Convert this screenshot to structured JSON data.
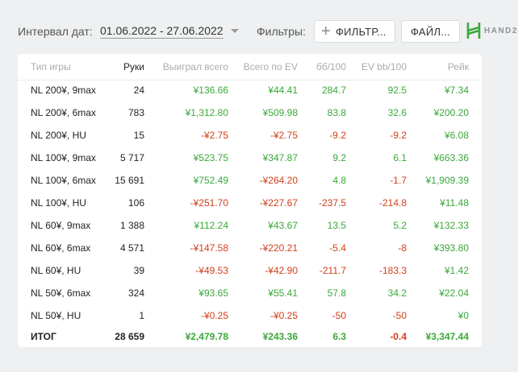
{
  "toolbar": {
    "date_label": "Интервал дат:",
    "date_range": "01.06.2022 - 27.06.2022",
    "filters_label": "Фильтры:",
    "filter_button": "ФИЛЬТР...",
    "file_button": "ФАЙЛ...",
    "logo_text": "HAND2",
    "logo_color": "#3aa83a"
  },
  "table": {
    "headers": [
      "Тип игры",
      "Руки",
      "Выиграл всего",
      "Всего по EV",
      "бб/100",
      "EV bb/100",
      "Рейк"
    ],
    "rows": [
      [
        "NL 200¥, 9max",
        "24",
        "¥136.66",
        "¥44.41",
        "284.7",
        "92.5",
        "¥7.34"
      ],
      [
        "NL 200¥, 6max",
        "783",
        "¥1,312.80",
        "¥509.98",
        "83.8",
        "32.6",
        "¥200.20"
      ],
      [
        "NL 200¥, HU",
        "15",
        "-¥2.75",
        "-¥2.75",
        "-9.2",
        "-9.2",
        "¥6.08"
      ],
      [
        "NL 100¥, 9max",
        "5 717",
        "¥523.75",
        "¥347.87",
        "9.2",
        "6.1",
        "¥663.36"
      ],
      [
        "NL 100¥, 6max",
        "15 691",
        "¥752.49",
        "-¥264.20",
        "4.8",
        "-1.7",
        "¥1,909.39"
      ],
      [
        "NL 100¥, HU",
        "106",
        "-¥251.70",
        "-¥227.67",
        "-237.5",
        "-214.8",
        "¥11.48"
      ],
      [
        "NL 60¥, 9max",
        "1 388",
        "¥112.24",
        "¥43.67",
        "13.5",
        "5.2",
        "¥132.33"
      ],
      [
        "NL 60¥, 6max",
        "4 571",
        "-¥147.58",
        "-¥220.21",
        "-5.4",
        "-8",
        "¥393.80"
      ],
      [
        "NL 60¥, HU",
        "39",
        "-¥49.53",
        "-¥42.90",
        "-211.7",
        "-183.3",
        "¥1.42"
      ],
      [
        "NL 50¥, 6max",
        "324",
        "¥93.65",
        "¥55.41",
        "57.8",
        "34.2",
        "¥22.04"
      ],
      [
        "NL 50¥, HU",
        "1",
        "-¥0.25",
        "-¥0.25",
        "-50",
        "-50",
        "¥0"
      ]
    ],
    "total": [
      "ИТОГ",
      "28 659",
      "¥2,479.78",
      "¥243.36",
      "6.3",
      "-0.4",
      "¥3,347.44"
    ],
    "colors": {
      "positive": "#3aa83a",
      "negative": "#d23f1a"
    }
  }
}
